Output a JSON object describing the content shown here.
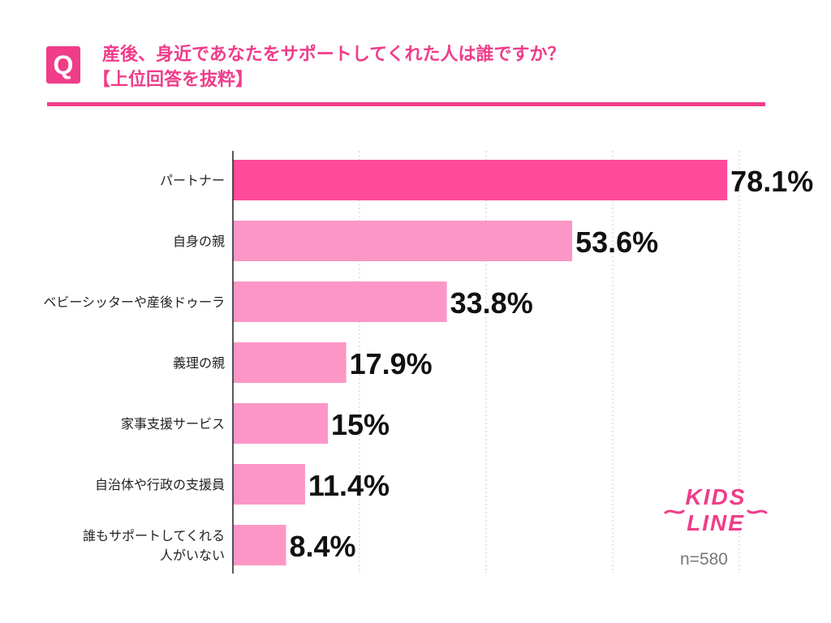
{
  "header": {
    "q_label": "Q",
    "title_line1": "産後、身近であなたをサポートしてくれた人は誰ですか？",
    "title_line2": "【上位回答を抜粋】"
  },
  "sample_size": "n=580",
  "logo": {
    "line1": "KIDS",
    "line2": "LINE"
  },
  "colors": {
    "accent": "#ef3d8a",
    "bar_highlight": "#ff4a9c",
    "bar_normal": "#fc96c6",
    "grid": "#c8c8c8",
    "axis": "#222222"
  },
  "chart_data": {
    "type": "bar",
    "orientation": "horizontal",
    "title": "産後、身近であなたをサポートしてくれた人は誰ですか？【上位回答を抜粋】",
    "categories": [
      "パートナー",
      "自身の親",
      "ベビーシッターや産後ドゥーラ",
      "義理の親",
      "家事支援サービス",
      "自治体や行政の支援員",
      "誰もサポートしてくれる人がいない"
    ],
    "category_display_lines": [
      [
        "パートナー"
      ],
      [
        "自身の親"
      ],
      [
        "ベビーシッターや産後ドゥーラ"
      ],
      [
        "義理の親"
      ],
      [
        "家事支援サービス"
      ],
      [
        "自治体や行政の支援員"
      ],
      [
        "誰もサポートしてくれる",
        "人がいない"
      ]
    ],
    "values": [
      78.1,
      53.6,
      33.8,
      17.9,
      15,
      11.4,
      8.4
    ],
    "value_labels": [
      "78.1%",
      "53.6%",
      "33.8%",
      "17.9%",
      "15%",
      "11.4%",
      "8.4%"
    ],
    "unit": "%",
    "xlim": [
      0,
      80
    ],
    "grid": true,
    "grid_lines_at": [
      20,
      40,
      60,
      80
    ],
    "highlight_index": 0
  }
}
